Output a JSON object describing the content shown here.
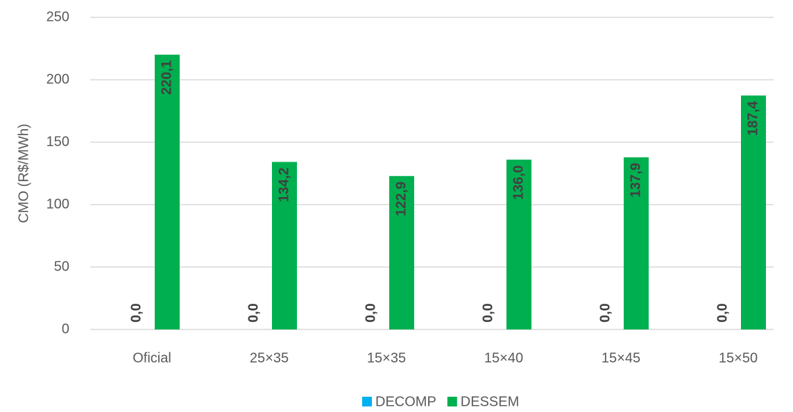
{
  "chart_data": {
    "type": "bar",
    "y_label": "CMO (R$/MWh)",
    "categories": [
      "Oficial",
      "25×35",
      "15×35",
      "15×40",
      "15×45",
      "15×50"
    ],
    "series": [
      {
        "name": "DECOMP",
        "color": "#00b0f0",
        "values": [
          0,
          0,
          0,
          0,
          0,
          0
        ],
        "value_labels": [
          "0,0",
          "0,0",
          "0,0",
          "0,0",
          "0,0",
          "0,0"
        ]
      },
      {
        "name": "DESSEM",
        "color": "#00b050",
        "values": [
          220.1,
          134.2,
          122.9,
          136.0,
          137.9,
          187.4
        ],
        "value_labels": [
          "220,1",
          "134,2",
          "122,9",
          "136,0",
          "137,9",
          "187,4"
        ]
      }
    ],
    "ylim": [
      0,
      250
    ],
    "yticks": [
      0,
      50,
      100,
      150,
      200,
      250
    ],
    "grid": true,
    "legend": "bottom"
  }
}
